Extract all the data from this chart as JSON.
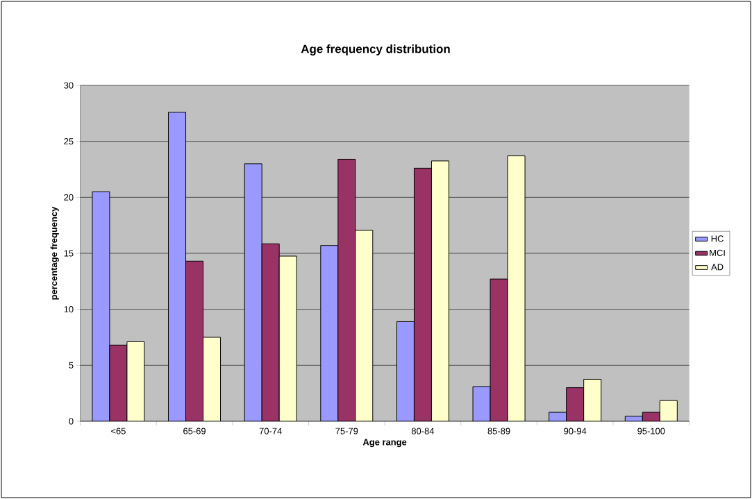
{
  "chart_data": {
    "type": "bar",
    "title": "Age frequency distribution",
    "xlabel": "Age range",
    "ylabel": "percentage frequency",
    "categories": [
      "<65",
      "65-69",
      "70-74",
      "75-79",
      "80-84",
      "85-89",
      "90-94",
      "95-100"
    ],
    "series": [
      {
        "name": "HC",
        "color": "#9999ff",
        "values": [
          20.5,
          27.6,
          23.0,
          15.7,
          8.9,
          3.1,
          0.8,
          0.45
        ]
      },
      {
        "name": "MCI",
        "color": "#993366",
        "values": [
          6.8,
          14.3,
          15.85,
          23.4,
          22.6,
          12.7,
          3.0,
          0.8
        ]
      },
      {
        "name": "AD",
        "color": "#ffffcc",
        "values": [
          7.1,
          7.5,
          14.75,
          17.05,
          23.25,
          23.7,
          3.75,
          1.85
        ]
      }
    ],
    "ylim": [
      0,
      30
    ],
    "yticks": [
      0,
      5,
      10,
      15,
      20,
      25,
      30
    ],
    "grid": "y",
    "legend": "right"
  }
}
